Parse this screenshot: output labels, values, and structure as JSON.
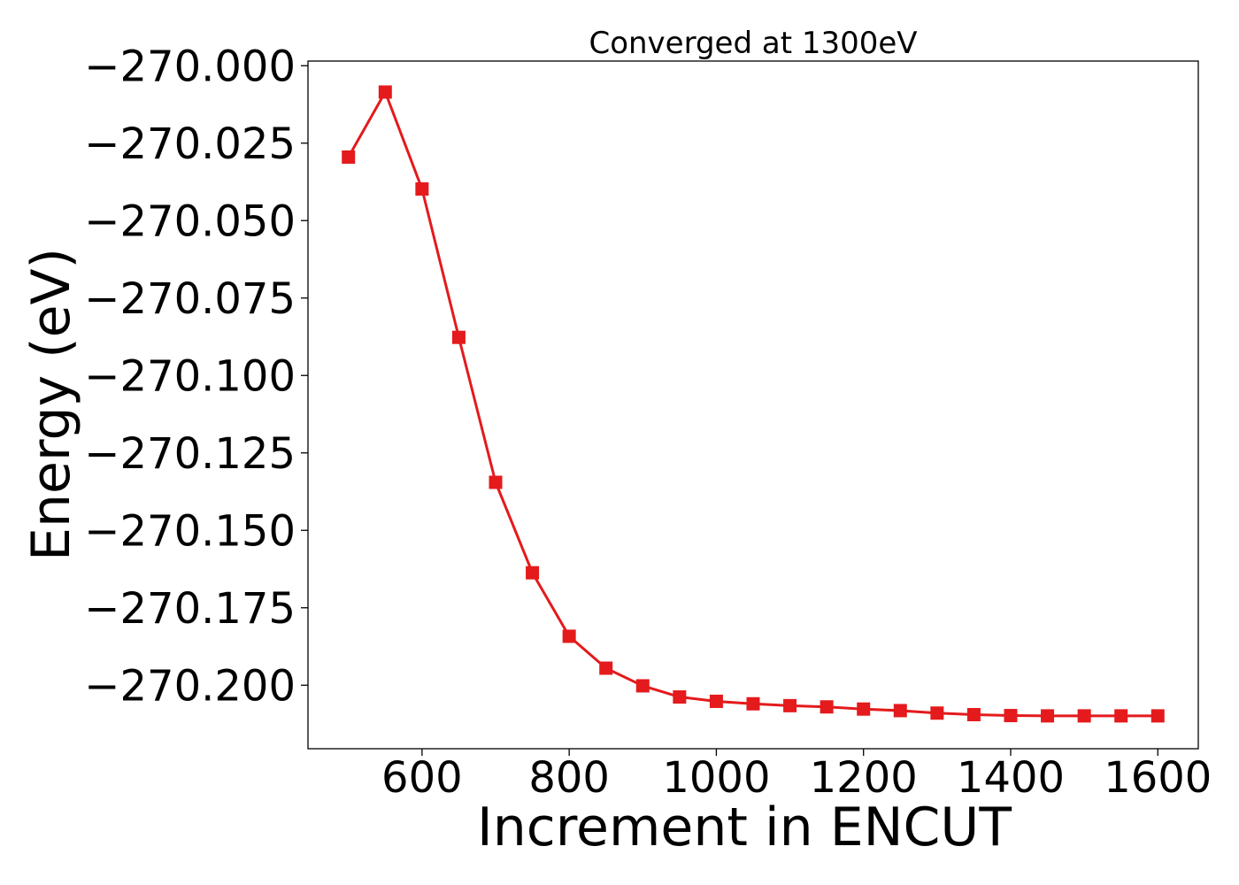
{
  "chart_data": {
    "type": "line",
    "title": "Converged at 1300eV",
    "xlabel": "Increment in ENCUT",
    "ylabel": "Energy (eV)",
    "xlim": [
      445,
      1655
    ],
    "ylim": [
      -270.2205,
      -269.9985
    ],
    "x_ticks": [
      600,
      800,
      1000,
      1200,
      1400,
      1600
    ],
    "y_ticks": [
      -270.0,
      -270.025,
      -270.05,
      -270.075,
      -270.1,
      -270.125,
      -270.15,
      -270.175,
      -270.2
    ],
    "x_tick_labels": [
      "600",
      "800",
      "1000",
      "1200",
      "1400",
      "1600"
    ],
    "y_tick_labels": [
      "−270.000",
      "−270.025",
      "−270.050",
      "−270.075",
      "−270.100",
      "−270.125",
      "−270.150",
      "−270.175",
      "−270.200"
    ],
    "grid": false,
    "legend": null,
    "series": [
      {
        "color": "#e41a1c",
        "marker": "square",
        "x": [
          500,
          550,
          600,
          650,
          700,
          750,
          800,
          850,
          900,
          950,
          1000,
          1050,
          1100,
          1150,
          1200,
          1250,
          1300,
          1350,
          1400,
          1450,
          1500,
          1550,
          1600
        ],
        "y": [
          -270.0295,
          -270.0085,
          -270.0398,
          -270.0877,
          -270.1345,
          -270.1637,
          -270.1842,
          -270.1945,
          -270.2002,
          -270.2038,
          -270.2052,
          -270.206,
          -270.2066,
          -270.207,
          -270.2077,
          -270.2082,
          -270.209,
          -270.2095,
          -270.2098,
          -270.2099,
          -270.2099,
          -270.2099,
          -270.2099
        ]
      }
    ]
  }
}
